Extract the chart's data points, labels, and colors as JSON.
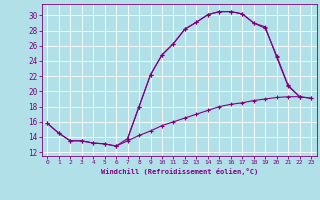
{
  "xlabel": "Windchill (Refroidissement éolien,°C)",
  "background_color": "#b2e0e8",
  "grid_color": "#ffffff",
  "line_color": "#800080",
  "xlim": [
    -0.5,
    23.5
  ],
  "ylim": [
    11.5,
    31.5
  ],
  "xticks": [
    0,
    1,
    2,
    3,
    4,
    5,
    6,
    7,
    8,
    9,
    10,
    11,
    12,
    13,
    14,
    15,
    16,
    17,
    18,
    19,
    20,
    21,
    22,
    23
  ],
  "yticks": [
    12,
    14,
    16,
    18,
    20,
    22,
    24,
    26,
    28,
    30
  ],
  "curve1_x": [
    0,
    1,
    2,
    3,
    4,
    5,
    6,
    7,
    8,
    9,
    10,
    11,
    12,
    13,
    14,
    15,
    16,
    17,
    18,
    19,
    20,
    21,
    22
  ],
  "curve1_y": [
    15.8,
    14.5,
    13.5,
    13.5,
    13.2,
    13.1,
    12.8,
    13.8,
    18.0,
    22.2,
    24.8,
    26.3,
    28.2,
    29.1,
    30.1,
    30.5,
    30.5,
    30.2,
    29.0,
    28.3,
    24.7,
    20.8,
    19.3
  ],
  "curve2_x": [
    7,
    8,
    9,
    10,
    11,
    12,
    13,
    14,
    15,
    16,
    17,
    18,
    19,
    20,
    21,
    22,
    23
  ],
  "curve2_y": [
    13.8,
    18.0,
    22.2,
    24.8,
    26.3,
    28.2,
    29.1,
    30.1,
    30.5,
    30.5,
    30.2,
    29.0,
    28.5,
    24.5,
    20.7,
    19.3,
    19.1
  ],
  "curve3_x": [
    0,
    1,
    2,
    3,
    4,
    5,
    6,
    7,
    8,
    9,
    10,
    11,
    12,
    13,
    14,
    15,
    16,
    17,
    18,
    19,
    20,
    21,
    22,
    23
  ],
  "curve3_y": [
    15.8,
    14.5,
    13.5,
    13.5,
    13.2,
    13.1,
    12.8,
    13.5,
    14.2,
    14.8,
    15.5,
    16.0,
    16.5,
    17.0,
    17.5,
    18.0,
    18.3,
    18.5,
    18.8,
    19.0,
    19.2,
    19.3,
    19.3,
    19.1
  ],
  "marker": "+"
}
